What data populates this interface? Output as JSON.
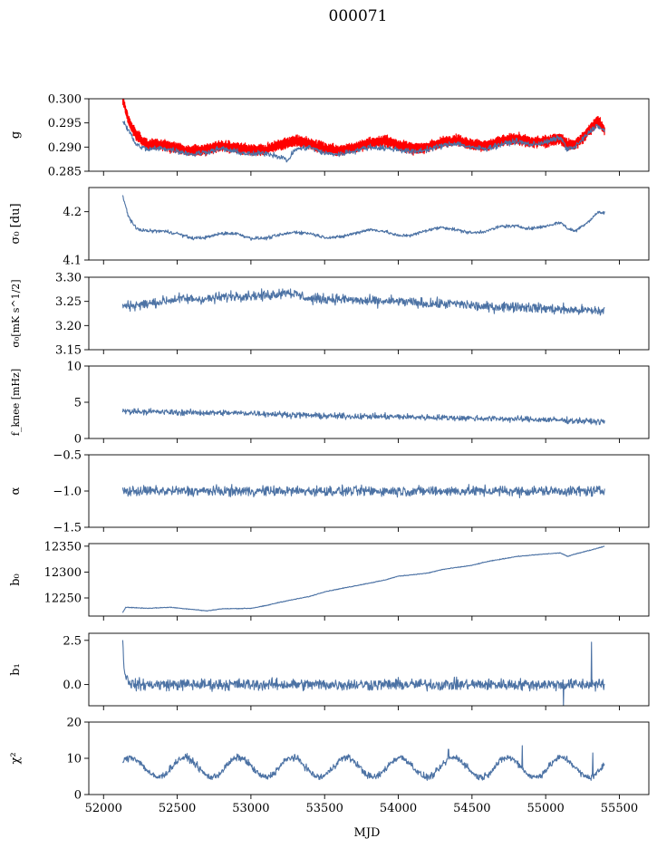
{
  "figure": {
    "title": "000071",
    "xlabel": "MJD"
  },
  "chart_data": [
    {
      "type": "line",
      "ylabel": "g",
      "ylim": [
        0.285,
        0.3
      ],
      "yticks": [
        "0.285",
        "0.290",
        "0.295",
        "0.300"
      ],
      "ytick_values": [
        0.285,
        0.29,
        0.295,
        0.3
      ],
      "xlim": [
        51900,
        55700
      ],
      "x_start": 52130,
      "x_end": 55400,
      "series": [
        {
          "color": "#ff0000",
          "kind": "band",
          "knots": [
            [
              52130,
              0.2998
            ],
            [
              52170,
              0.2955
            ],
            [
              52220,
              0.2925
            ],
            [
              52300,
              0.2905
            ],
            [
              52400,
              0.2905
            ],
            [
              52500,
              0.2898
            ],
            [
              52600,
              0.2892
            ],
            [
              52700,
              0.2895
            ],
            [
              52800,
              0.2903
            ],
            [
              52900,
              0.2898
            ],
            [
              53000,
              0.2893
            ],
            [
              53100,
              0.2895
            ],
            [
              53200,
              0.2905
            ],
            [
              53300,
              0.2913
            ],
            [
              53400,
              0.2908
            ],
            [
              53500,
              0.2897
            ],
            [
              53600,
              0.2893
            ],
            [
              53700,
              0.2898
            ],
            [
              53800,
              0.2908
            ],
            [
              53900,
              0.2913
            ],
            [
              54000,
              0.2905
            ],
            [
              54100,
              0.2897
            ],
            [
              54200,
              0.29
            ],
            [
              54300,
              0.291
            ],
            [
              54400,
              0.2915
            ],
            [
              54500,
              0.2905
            ],
            [
              54600,
              0.2903
            ],
            [
              54700,
              0.2912
            ],
            [
              54800,
              0.2918
            ],
            [
              54900,
              0.291
            ],
            [
              55000,
              0.2912
            ],
            [
              55100,
              0.2918
            ],
            [
              55150,
              0.2905
            ],
            [
              55200,
              0.2905
            ],
            [
              55300,
              0.2935
            ],
            [
              55350,
              0.2955
            ],
            [
              55400,
              0.2935
            ]
          ],
          "amp": 0.0009,
          "noise": 0.0004
        },
        {
          "color": "#4c72a4",
          "kind": "line",
          "knots": [
            [
              52130,
              0.2955
            ],
            [
              52170,
              0.2935
            ],
            [
              52220,
              0.2905
            ],
            [
              52300,
              0.2895
            ],
            [
              52400,
              0.2898
            ],
            [
              52500,
              0.2892
            ],
            [
              52600,
              0.2885
            ],
            [
              52700,
              0.289
            ],
            [
              52800,
              0.2897
            ],
            [
              52900,
              0.289
            ],
            [
              53000,
              0.2885
            ],
            [
              53100,
              0.2888
            ],
            [
              53200,
              0.288
            ],
            [
              53250,
              0.2872
            ],
            [
              53300,
              0.2895
            ],
            [
              53400,
              0.29
            ],
            [
              53500,
              0.2887
            ],
            [
              53600,
              0.2885
            ],
            [
              53700,
              0.2892
            ],
            [
              53800,
              0.29
            ],
            [
              53900,
              0.2898
            ],
            [
              54000,
              0.2895
            ],
            [
              54100,
              0.289
            ],
            [
              54200,
              0.2895
            ],
            [
              54300,
              0.2903
            ],
            [
              54400,
              0.2908
            ],
            [
              54500,
              0.2898
            ],
            [
              54600,
              0.2897
            ],
            [
              54700,
              0.2906
            ],
            [
              54800,
              0.2912
            ],
            [
              54900,
              0.2905
            ],
            [
              55000,
              0.291
            ],
            [
              55100,
              0.292
            ],
            [
              55150,
              0.2895
            ],
            [
              55200,
              0.29
            ],
            [
              55300,
              0.2932
            ],
            [
              55350,
              0.2945
            ],
            [
              55400,
              0.2932
            ]
          ],
          "amp": 0.0,
          "noise": 0.0005
        }
      ]
    },
    {
      "type": "line",
      "ylabel": "σ₀ [du]",
      "ylim": [
        4.1,
        4.25
      ],
      "yticks": [
        "4.1",
        "4.2"
      ],
      "ytick_values": [
        4.1,
        4.2
      ],
      "xlim": [
        51900,
        55700
      ],
      "x_start": 52130,
      "x_end": 55400,
      "series": [
        {
          "color": "#4c72a4",
          "kind": "line",
          "knots": [
            [
              52130,
              4.232
            ],
            [
              52170,
              4.19
            ],
            [
              52220,
              4.165
            ],
            [
              52300,
              4.16
            ],
            [
              52400,
              4.16
            ],
            [
              52500,
              4.155
            ],
            [
              52600,
              4.145
            ],
            [
              52700,
              4.147
            ],
            [
              52800,
              4.155
            ],
            [
              52900,
              4.155
            ],
            [
              53000,
              4.145
            ],
            [
              53100,
              4.145
            ],
            [
              53200,
              4.152
            ],
            [
              53300,
              4.158
            ],
            [
              53400,
              4.155
            ],
            [
              53500,
              4.147
            ],
            [
              53600,
              4.147
            ],
            [
              53700,
              4.155
            ],
            [
              53800,
              4.163
            ],
            [
              53900,
              4.16
            ],
            [
              54000,
              4.15
            ],
            [
              54100,
              4.152
            ],
            [
              54200,
              4.162
            ],
            [
              54300,
              4.168
            ],
            [
              54400,
              4.162
            ],
            [
              54500,
              4.156
            ],
            [
              54600,
              4.16
            ],
            [
              54700,
              4.17
            ],
            [
              54800,
              4.17
            ],
            [
              54900,
              4.165
            ],
            [
              55000,
              4.17
            ],
            [
              55100,
              4.178
            ],
            [
              55150,
              4.165
            ],
            [
              55200,
              4.16
            ],
            [
              55300,
              4.182
            ],
            [
              55350,
              4.198
            ],
            [
              55400,
              4.198
            ]
          ],
          "amp": 0.0,
          "noise": 0.003
        }
      ]
    },
    {
      "type": "line",
      "ylabel": "σ₀[mK s^1/2]",
      "ylim": [
        3.15,
        3.3
      ],
      "yticks": [
        "3.15",
        "3.20",
        "3.25",
        "3.30"
      ],
      "ytick_values": [
        3.15,
        3.2,
        3.25,
        3.3
      ],
      "xlim": [
        51900,
        55700
      ],
      "x_start": 52130,
      "x_end": 55400,
      "series": [
        {
          "color": "#4c72a4",
          "kind": "line",
          "knots": [
            [
              52130,
              3.24
            ],
            [
              52300,
              3.245
            ],
            [
              52500,
              3.255
            ],
            [
              52700,
              3.255
            ],
            [
              52900,
              3.262
            ],
            [
              53100,
              3.262
            ],
            [
              53250,
              3.27
            ],
            [
              53400,
              3.255
            ],
            [
              53600,
              3.255
            ],
            [
              53800,
              3.25
            ],
            [
              54000,
              3.25
            ],
            [
              54200,
              3.245
            ],
            [
              54400,
              3.245
            ],
            [
              54600,
              3.238
            ],
            [
              54800,
              3.24
            ],
            [
              55000,
              3.235
            ],
            [
              55200,
              3.232
            ],
            [
              55400,
              3.23
            ]
          ],
          "amp": 0.0,
          "noise": 0.009
        }
      ]
    },
    {
      "type": "line",
      "ylabel": "f_knee [mHz]",
      "ylim": [
        0,
        10
      ],
      "yticks": [
        "0",
        "5",
        "10"
      ],
      "ytick_values": [
        0,
        5,
        10
      ],
      "xlim": [
        51900,
        55700
      ],
      "x_start": 52130,
      "x_end": 55400,
      "series": [
        {
          "color": "#4c72a4",
          "kind": "line",
          "knots": [
            [
              52130,
              3.8
            ],
            [
              52500,
              3.6
            ],
            [
              53000,
              3.5
            ],
            [
              53500,
              3.1
            ],
            [
              54000,
              3.0
            ],
            [
              54500,
              2.8
            ],
            [
              55000,
              2.6
            ],
            [
              55400,
              2.3
            ]
          ],
          "amp": 0.0,
          "noise": 0.35
        }
      ]
    },
    {
      "type": "line",
      "ylabel": "α",
      "ylim": [
        -1.5,
        -0.5
      ],
      "yticks": [
        "−1.5",
        "−1.0",
        "−0.5"
      ],
      "ytick_values": [
        -1.5,
        -1.0,
        -0.5
      ],
      "xlim": [
        51900,
        55700
      ],
      "x_start": 52130,
      "x_end": 55400,
      "series": [
        {
          "color": "#4c72a4",
          "kind": "line",
          "knots": [
            [
              52130,
              -1.0
            ],
            [
              55400,
              -1.0
            ]
          ],
          "amp": 0.0,
          "noise": 0.06
        }
      ]
    },
    {
      "type": "line",
      "ylabel": "b₀",
      "ylim": [
        12215,
        12355
      ],
      "yticks": [
        "12250",
        "12300",
        "12350"
      ],
      "ytick_values": [
        12250,
        12300,
        12350
      ],
      "xlim": [
        51900,
        55700
      ],
      "x_start": 52130,
      "x_end": 55400,
      "series": [
        {
          "color": "#4c72a4",
          "kind": "line",
          "knots": [
            [
              52130,
              12222
            ],
            [
              52150,
              12232
            ],
            [
              52300,
              12230
            ],
            [
              52450,
              12232
            ],
            [
              52600,
              12228
            ],
            [
              52700,
              12225
            ],
            [
              52800,
              12229
            ],
            [
              53000,
              12230
            ],
            [
              53100,
              12235
            ],
            [
              53200,
              12242
            ],
            [
              53400,
              12253
            ],
            [
              53500,
              12262
            ],
            [
              53700,
              12273
            ],
            [
              53900,
              12284
            ],
            [
              54000,
              12292
            ],
            [
              54200,
              12298
            ],
            [
              54300,
              12305
            ],
            [
              54500,
              12313
            ],
            [
              54600,
              12320
            ],
            [
              54800,
              12330
            ],
            [
              55000,
              12335
            ],
            [
              55100,
              12337
            ],
            [
              55150,
              12330
            ],
            [
              55200,
              12335
            ],
            [
              55300,
              12342
            ],
            [
              55400,
              12350
            ]
          ],
          "amp": 0.0,
          "noise": 0.6
        }
      ]
    },
    {
      "type": "line",
      "ylabel": "b₁",
      "ylim": [
        -1.2,
        2.9
      ],
      "yticks": [
        "0.0",
        "2.5"
      ],
      "ytick_values": [
        0.0,
        2.5
      ],
      "xlim": [
        51900,
        55700
      ],
      "x_start": 52130,
      "x_end": 55400,
      "series": [
        {
          "color": "#4c72a4",
          "kind": "line",
          "knots": [
            [
              52130,
              2.7
            ],
            [
              52140,
              0.8
            ],
            [
              52160,
              0.3
            ],
            [
              52200,
              0.0
            ],
            [
              55400,
              0.0
            ]
          ],
          "amp": 0.0,
          "noise": 0.28,
          "spikes": [
            [
              55120,
              -1.2
            ],
            [
              55310,
              2.4
            ]
          ]
        }
      ]
    },
    {
      "type": "line",
      "ylabel": "χ²",
      "ylim": [
        0,
        20
      ],
      "yticks": [
        "0",
        "10",
        "20"
      ],
      "ytick_values": [
        0,
        10,
        20
      ],
      "xticks": [
        "52000",
        "52500",
        "53000",
        "53500",
        "54000",
        "54500",
        "55000",
        "55500"
      ],
      "xtick_values": [
        52000,
        52500,
        53000,
        53500,
        54000,
        54500,
        55000,
        55500
      ],
      "xlim": [
        51900,
        55700
      ],
      "x_start": 52130,
      "x_end": 55400,
      "series": [
        {
          "color": "#4c72a4",
          "kind": "seasonal",
          "base": 7.5,
          "amp": 2.7,
          "period": 365.25,
          "phase": 0.6,
          "noise": 0.8,
          "spikes": [
            [
              54340,
              12.5
            ],
            [
              54840,
              13.5
            ],
            [
              55320,
              11.5
            ]
          ]
        }
      ]
    }
  ]
}
